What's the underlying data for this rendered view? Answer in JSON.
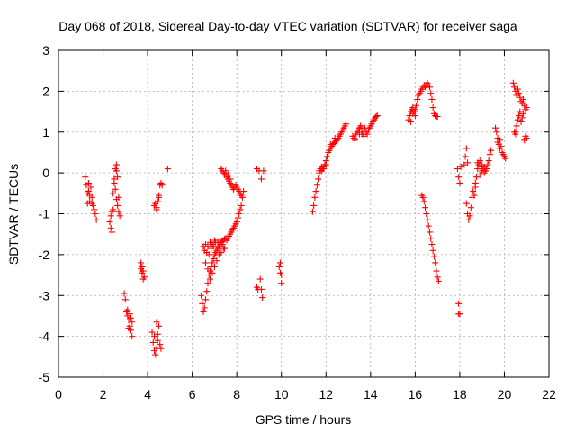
{
  "chart_data": {
    "type": "scatter",
    "title": "Day 068 of 2018, Sidereal Day-to-day VTEC variation (SDTVAR) for receiver saga",
    "xlabel": "GPS time / hours",
    "ylabel": "SDTVAR / TECUs",
    "xlim": [
      0,
      22
    ],
    "ylim": [
      -5,
      3
    ],
    "xticks": [
      0,
      2,
      4,
      6,
      8,
      10,
      12,
      14,
      16,
      18,
      20,
      22
    ],
    "yticks": [
      -5,
      -4,
      -3,
      -2,
      -1,
      0,
      1,
      2,
      3
    ],
    "grid": true,
    "marker": "+",
    "series_color": "#ff0000",
    "segments": [
      [
        [
          1.2,
          -0.1
        ],
        [
          1.25,
          -0.3
        ],
        [
          1.3,
          -0.5
        ],
        [
          1.35,
          -0.45
        ],
        [
          1.4,
          -0.7
        ],
        [
          1.45,
          -0.35
        ],
        [
          1.5,
          -0.6
        ],
        [
          1.55,
          -0.8
        ],
        [
          1.6,
          -0.9
        ],
        [
          1.65,
          -1.0
        ],
        [
          1.7,
          -1.15
        ],
        [
          1.35,
          -0.25
        ],
        [
          1.4,
          -0.55
        ],
        [
          1.5,
          -0.75
        ],
        [
          1.3,
          -0.75
        ]
      ],
      [
        [
          2.3,
          -1.2
        ],
        [
          2.35,
          -1.35
        ],
        [
          2.4,
          -1.45
        ],
        [
          2.35,
          -1.05
        ],
        [
          2.45,
          -0.5
        ],
        [
          2.5,
          -0.15
        ],
        [
          2.55,
          0.1
        ],
        [
          2.6,
          0.2
        ],
        [
          2.5,
          -0.25
        ],
        [
          2.55,
          -0.4
        ],
        [
          2.6,
          -0.65
        ],
        [
          2.65,
          -0.8
        ],
        [
          2.7,
          -0.95
        ],
        [
          2.6,
          0.05
        ],
        [
          2.65,
          -0.1
        ],
        [
          2.7,
          -0.6
        ],
        [
          2.75,
          -1.05
        ],
        [
          2.45,
          -0.9
        ],
        [
          2.4,
          -0.95
        ]
      ],
      [
        [
          2.95,
          -2.95
        ],
        [
          3.0,
          -3.1
        ],
        [
          3.05,
          -3.4
        ],
        [
          3.1,
          -3.5
        ],
        [
          3.15,
          -3.6
        ],
        [
          3.2,
          -3.75
        ],
        [
          3.25,
          -3.85
        ],
        [
          3.3,
          -4.0
        ],
        [
          3.1,
          -3.35
        ],
        [
          3.2,
          -3.45
        ],
        [
          3.3,
          -3.65
        ],
        [
          3.15,
          -3.8
        ],
        [
          3.25,
          -3.55
        ]
      ],
      [
        [
          3.7,
          -2.2
        ],
        [
          3.75,
          -2.3
        ],
        [
          3.8,
          -2.4
        ],
        [
          3.85,
          -2.55
        ],
        [
          3.75,
          -2.45
        ],
        [
          3.8,
          -2.6
        ],
        [
          3.7,
          -2.35
        ]
      ],
      [
        [
          4.2,
          -3.9
        ],
        [
          4.25,
          -4.15
        ],
        [
          4.3,
          -4.35
        ],
        [
          4.35,
          -4.45
        ],
        [
          4.4,
          -4.3
        ],
        [
          4.45,
          -4.1
        ],
        [
          4.5,
          -3.75
        ],
        [
          4.4,
          -3.65
        ],
        [
          4.55,
          -4.2
        ],
        [
          4.6,
          -4.3
        ],
        [
          4.3,
          -4.0
        ],
        [
          4.45,
          -3.95
        ]
      ],
      [
        [
          4.3,
          -0.8
        ],
        [
          4.35,
          -0.75
        ],
        [
          4.4,
          -0.85
        ],
        [
          4.45,
          -0.7
        ],
        [
          4.5,
          -0.55
        ],
        [
          4.55,
          -0.3
        ],
        [
          4.6,
          -0.25
        ],
        [
          4.65,
          -0.3
        ],
        [
          4.4,
          -0.9
        ],
        [
          4.5,
          -0.6
        ]
      ],
      [
        [
          4.9,
          0.1
        ]
      ],
      [
        [
          6.4,
          -3.0
        ],
        [
          6.45,
          -3.2
        ],
        [
          6.5,
          -3.4
        ],
        [
          6.55,
          -3.3
        ],
        [
          6.6,
          -3.1
        ],
        [
          6.65,
          -2.9
        ],
        [
          6.7,
          -2.7
        ],
        [
          6.75,
          -2.5
        ],
        [
          6.8,
          -2.4
        ],
        [
          6.85,
          -2.3
        ],
        [
          6.9,
          -2.2
        ],
        [
          6.95,
          -2.1
        ],
        [
          7.0,
          -2.0
        ],
        [
          7.05,
          -1.95
        ],
        [
          7.1,
          -1.9
        ],
        [
          7.15,
          -1.85
        ],
        [
          7.2,
          -1.8
        ],
        [
          7.25,
          -1.75
        ],
        [
          7.3,
          -1.7
        ],
        [
          7.35,
          -1.68
        ],
        [
          7.4,
          -1.65
        ],
        [
          7.45,
          -1.62
        ],
        [
          7.5,
          -1.6
        ],
        [
          7.55,
          -1.65
        ],
        [
          7.6,
          -1.6
        ],
        [
          7.65,
          -1.55
        ],
        [
          7.7,
          -1.5
        ],
        [
          7.75,
          -1.45
        ],
        [
          7.8,
          -1.4
        ],
        [
          7.85,
          -1.35
        ],
        [
          7.9,
          -1.3
        ],
        [
          7.95,
          -1.25
        ],
        [
          8.0,
          -1.2
        ],
        [
          8.05,
          -1.1
        ],
        [
          8.1,
          -1.0
        ],
        [
          8.15,
          -0.9
        ],
        [
          8.2,
          -0.8
        ],
        [
          8.25,
          -0.6
        ],
        [
          8.3,
          -0.45
        ],
        [
          6.5,
          -1.8
        ],
        [
          6.6,
          -1.75
        ],
        [
          6.7,
          -1.8
        ],
        [
          6.8,
          -1.7
        ],
        [
          6.9,
          -1.75
        ],
        [
          7.0,
          -1.65
        ],
        [
          6.55,
          -1.9
        ],
        [
          6.65,
          -1.95
        ],
        [
          6.75,
          -2.0
        ],
        [
          6.85,
          -1.85
        ],
        [
          6.95,
          -1.8
        ],
        [
          7.05,
          -1.7
        ],
        [
          7.15,
          -1.7
        ],
        [
          7.25,
          -1.65
        ],
        [
          7.35,
          -1.75
        ],
        [
          7.45,
          -1.85
        ],
        [
          6.6,
          -2.2
        ],
        [
          6.7,
          -2.35
        ],
        [
          6.8,
          -2.6
        ],
        [
          6.9,
          -2.45
        ],
        [
          7.0,
          -2.3
        ],
        [
          7.1,
          -2.15
        ],
        [
          7.2,
          -2.0
        ],
        [
          7.3,
          -1.95
        ],
        [
          7.4,
          -1.85
        ]
      ],
      [
        [
          7.3,
          0.1
        ],
        [
          7.35,
          0.05
        ],
        [
          7.4,
          0.0
        ],
        [
          7.45,
          -0.05
        ],
        [
          7.5,
          0.0
        ],
        [
          7.55,
          -0.1
        ],
        [
          7.6,
          -0.15
        ],
        [
          7.65,
          -0.2
        ],
        [
          7.7,
          -0.25
        ],
        [
          7.75,
          -0.3
        ],
        [
          7.8,
          -0.35
        ],
        [
          7.85,
          -0.4
        ],
        [
          7.9,
          -0.35
        ],
        [
          7.95,
          -0.3
        ],
        [
          8.0,
          -0.35
        ],
        [
          8.05,
          -0.4
        ],
        [
          8.1,
          -0.45
        ],
        [
          8.15,
          -0.5
        ],
        [
          8.2,
          -0.55
        ],
        [
          7.5,
          0.05
        ],
        [
          7.6,
          -0.05
        ],
        [
          7.7,
          -0.15
        ]
      ],
      [
        [
          8.9,
          -2.8
        ],
        [
          8.95,
          -2.85
        ],
        [
          9.05,
          -2.6
        ],
        [
          9.1,
          -2.85
        ],
        [
          9.15,
          -3.05
        ]
      ],
      [
        [
          8.9,
          0.1
        ],
        [
          9.0,
          0.05
        ],
        [
          9.1,
          -0.15
        ],
        [
          9.2,
          0.05
        ]
      ],
      [
        [
          9.9,
          -2.3
        ],
        [
          9.95,
          -2.45
        ],
        [
          10.0,
          -2.5
        ],
        [
          10.0,
          -2.7
        ],
        [
          9.95,
          -2.2
        ]
      ],
      [
        [
          11.4,
          -0.95
        ],
        [
          11.45,
          -0.8
        ],
        [
          11.5,
          -0.6
        ],
        [
          11.55,
          -0.45
        ],
        [
          11.6,
          -0.3
        ],
        [
          11.65,
          -0.15
        ],
        [
          11.7,
          0.0
        ],
        [
          11.75,
          0.1
        ],
        [
          11.8,
          0.15
        ],
        [
          11.85,
          0.1
        ],
        [
          11.9,
          0.15
        ],
        [
          11.95,
          0.2
        ],
        [
          12.0,
          0.3
        ],
        [
          12.05,
          0.4
        ],
        [
          12.1,
          0.5
        ],
        [
          12.15,
          0.55
        ],
        [
          12.2,
          0.6
        ],
        [
          12.25,
          0.65
        ],
        [
          12.3,
          0.7
        ],
        [
          12.35,
          0.72
        ],
        [
          12.4,
          0.75
        ],
        [
          12.45,
          0.78
        ],
        [
          12.5,
          0.8
        ],
        [
          12.55,
          0.85
        ],
        [
          12.6,
          0.9
        ],
        [
          12.65,
          0.95
        ],
        [
          12.7,
          1.0
        ],
        [
          12.75,
          1.05
        ],
        [
          12.8,
          1.1
        ],
        [
          12.85,
          1.15
        ],
        [
          12.9,
          1.2
        ],
        [
          11.7,
          0.05
        ],
        [
          11.8,
          0.05
        ],
        [
          11.9,
          0.1
        ],
        [
          12.0,
          0.2
        ],
        [
          12.2,
          0.7
        ],
        [
          12.4,
          0.85
        ]
      ],
      [
        [
          13.2,
          0.9
        ],
        [
          13.25,
          0.85
        ],
        [
          13.3,
          0.8
        ],
        [
          13.35,
          0.95
        ],
        [
          13.4,
          1.0
        ],
        [
          13.45,
          1.05
        ],
        [
          13.5,
          1.1
        ],
        [
          13.55,
          1.15
        ],
        [
          13.6,
          1.0
        ],
        [
          13.65,
          0.95
        ],
        [
          13.7,
          1.05
        ],
        [
          13.75,
          1.1
        ],
        [
          13.8,
          1.0
        ],
        [
          13.85,
          0.95
        ],
        [
          13.9,
          1.05
        ],
        [
          13.95,
          1.1
        ],
        [
          14.0,
          1.15
        ],
        [
          14.05,
          1.2
        ],
        [
          14.1,
          1.25
        ],
        [
          14.15,
          1.3
        ],
        [
          14.2,
          1.35
        ],
        [
          14.25,
          1.38
        ],
        [
          14.3,
          1.4
        ],
        [
          13.5,
          0.95
        ],
        [
          13.6,
          1.1
        ],
        [
          13.7,
          0.9
        ]
      ],
      [
        [
          15.7,
          1.3
        ],
        [
          15.75,
          1.4
        ],
        [
          15.8,
          1.5
        ],
        [
          15.85,
          1.55
        ],
        [
          15.9,
          1.6
        ],
        [
          15.95,
          1.5
        ],
        [
          16.0,
          1.55
        ],
        [
          16.05,
          1.65
        ],
        [
          16.1,
          1.8
        ],
        [
          16.15,
          1.9
        ],
        [
          16.2,
          1.95
        ],
        [
          16.25,
          2.0
        ],
        [
          16.3,
          2.05
        ],
        [
          16.35,
          2.1
        ],
        [
          16.4,
          2.15
        ],
        [
          16.45,
          2.1
        ],
        [
          16.5,
          2.15
        ],
        [
          16.55,
          2.2
        ],
        [
          16.6,
          2.15
        ],
        [
          16.65,
          2.1
        ],
        [
          16.7,
          1.95
        ],
        [
          16.75,
          1.8
        ],
        [
          16.8,
          1.6
        ],
        [
          16.85,
          1.45
        ],
        [
          16.9,
          1.4
        ],
        [
          16.95,
          1.38
        ],
        [
          17.0,
          1.38
        ],
        [
          15.8,
          1.25
        ],
        [
          15.9,
          1.45
        ],
        [
          16.0,
          1.4
        ]
      ],
      [
        [
          16.3,
          -0.55
        ],
        [
          16.35,
          -0.6
        ],
        [
          16.4,
          -0.7
        ],
        [
          16.45,
          -0.85
        ],
        [
          16.5,
          -1.0
        ],
        [
          16.55,
          -1.15
        ],
        [
          16.6,
          -1.3
        ],
        [
          16.65,
          -1.45
        ],
        [
          16.7,
          -1.6
        ],
        [
          16.75,
          -1.75
        ],
        [
          16.8,
          -1.9
        ],
        [
          16.85,
          -2.05
        ],
        [
          16.9,
          -2.2
        ],
        [
          16.95,
          -2.4
        ],
        [
          17.0,
          -2.55
        ],
        [
          17.05,
          -2.65
        ]
      ],
      [
        [
          17.95,
          -3.2
        ],
        [
          17.95,
          -3.45
        ],
        [
          18.0,
          -3.45
        ]
      ],
      [
        [
          17.9,
          0.1
        ],
        [
          17.95,
          -0.1
        ],
        [
          18.0,
          -0.25
        ],
        [
          18.05,
          0.15
        ],
        [
          18.2,
          0.2
        ],
        [
          18.25,
          0.4
        ],
        [
          18.3,
          0.6
        ],
        [
          18.35,
          0.25
        ],
        [
          18.3,
          -0.75
        ],
        [
          18.35,
          -1.0
        ],
        [
          18.4,
          -1.15
        ],
        [
          18.45,
          -1.05
        ],
        [
          18.5,
          -0.85
        ],
        [
          18.55,
          -0.6
        ],
        [
          18.6,
          -0.45
        ],
        [
          18.65,
          -0.55
        ],
        [
          18.7,
          -0.35
        ],
        [
          18.75,
          -0.1
        ],
        [
          18.8,
          0.1
        ],
        [
          18.85,
          0.2
        ],
        [
          18.9,
          0.3
        ],
        [
          18.95,
          0.15
        ],
        [
          19.0,
          0.05
        ],
        [
          19.05,
          0.1
        ],
        [
          19.1,
          0.0
        ],
        [
          19.15,
          0.05
        ],
        [
          19.2,
          0.1
        ],
        [
          19.25,
          0.2
        ],
        [
          19.3,
          0.3
        ],
        [
          19.35,
          0.45
        ],
        [
          19.4,
          0.55
        ],
        [
          18.7,
          -0.25
        ],
        [
          18.8,
          0.25
        ],
        [
          18.9,
          -0.05
        ],
        [
          19.0,
          0.2
        ],
        [
          19.1,
          0.15
        ]
      ],
      [
        [
          19.6,
          1.1
        ],
        [
          19.65,
          1.0
        ],
        [
          19.7,
          0.85
        ],
        [
          19.75,
          0.7
        ],
        [
          19.8,
          0.6
        ],
        [
          19.85,
          0.65
        ],
        [
          19.9,
          0.5
        ],
        [
          19.95,
          0.45
        ],
        [
          20.0,
          0.4
        ],
        [
          20.05,
          0.35
        ],
        [
          19.7,
          0.75
        ],
        [
          19.8,
          0.8
        ]
      ],
      [
        [
          20.4,
          2.2
        ],
        [
          20.45,
          2.1
        ],
        [
          20.5,
          2.0
        ],
        [
          20.55,
          1.9
        ],
        [
          20.6,
          2.05
        ],
        [
          20.65,
          1.95
        ],
        [
          20.7,
          1.85
        ],
        [
          20.75,
          1.75
        ],
        [
          20.8,
          1.7
        ],
        [
          20.85,
          1.8
        ],
        [
          20.9,
          1.65
        ],
        [
          20.95,
          1.55
        ],
        [
          21.0,
          1.6
        ],
        [
          20.5,
          1.0
        ],
        [
          20.55,
          1.15
        ],
        [
          20.6,
          1.3
        ],
        [
          20.65,
          1.4
        ],
        [
          20.7,
          1.5
        ],
        [
          20.75,
          1.25
        ],
        [
          20.8,
          1.35
        ],
        [
          20.85,
          1.45
        ],
        [
          20.9,
          0.8
        ],
        [
          20.95,
          0.9
        ],
        [
          21.0,
          0.85
        ],
        [
          20.45,
          1.0
        ],
        [
          20.5,
          0.95
        ]
      ]
    ]
  }
}
